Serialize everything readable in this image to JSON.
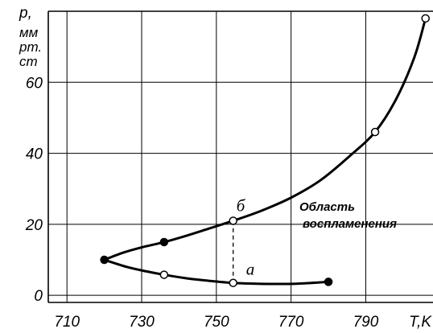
{
  "chart_data": {
    "type": "line",
    "xlabel": "T,K",
    "ylabel_lines": [
      "p,",
      "мм",
      "рт.",
      "ст"
    ],
    "x_ticks": [
      710,
      730,
      750,
      770,
      790
    ],
    "y_ticks": [
      0,
      20,
      40,
      60
    ],
    "xlim": [
      705,
      808
    ],
    "ylim": [
      -2,
      80
    ],
    "grid": true,
    "annotations": {
      "region": [
        "Область",
        "воспламенения"
      ],
      "point_upper": "б",
      "point_lower": "а"
    },
    "series": [
      {
        "style": "upper-limit",
        "x": [
          720,
          725,
          730,
          736,
          742,
          748,
          754.5,
          762,
          770,
          778,
          786,
          792.5,
          798,
          803,
          806
        ],
        "y": [
          10,
          12,
          13.5,
          15,
          16.8,
          18.8,
          21,
          23.8,
          27.5,
          32.5,
          39.5,
          46,
          55,
          67,
          78
        ]
      },
      {
        "style": "lower-limit",
        "x": [
          720,
          726,
          731,
          736,
          742,
          748,
          754.5,
          760,
          766,
          772,
          780
        ],
        "y": [
          10,
          8,
          6.8,
          5.8,
          4.8,
          4.1,
          3.5,
          3.3,
          3.2,
          3.3,
          3.8
        ]
      }
    ],
    "markers": [
      {
        "x": 720,
        "y": 10,
        "fill": "filled"
      },
      {
        "x": 736,
        "y": 15,
        "fill": "filled"
      },
      {
        "x": 754.5,
        "y": 21,
        "fill": "open"
      },
      {
        "x": 792.5,
        "y": 46,
        "fill": "open"
      },
      {
        "x": 806,
        "y": 78,
        "fill": "open"
      },
      {
        "x": 736,
        "y": 5.8,
        "fill": "open"
      },
      {
        "x": 754.5,
        "y": 3.5,
        "fill": "open"
      },
      {
        "x": 780,
        "y": 3.8,
        "fill": "filled"
      }
    ],
    "dashed_link": {
      "x": 754.5,
      "y_from": 3.5,
      "y_to": 21
    }
  }
}
